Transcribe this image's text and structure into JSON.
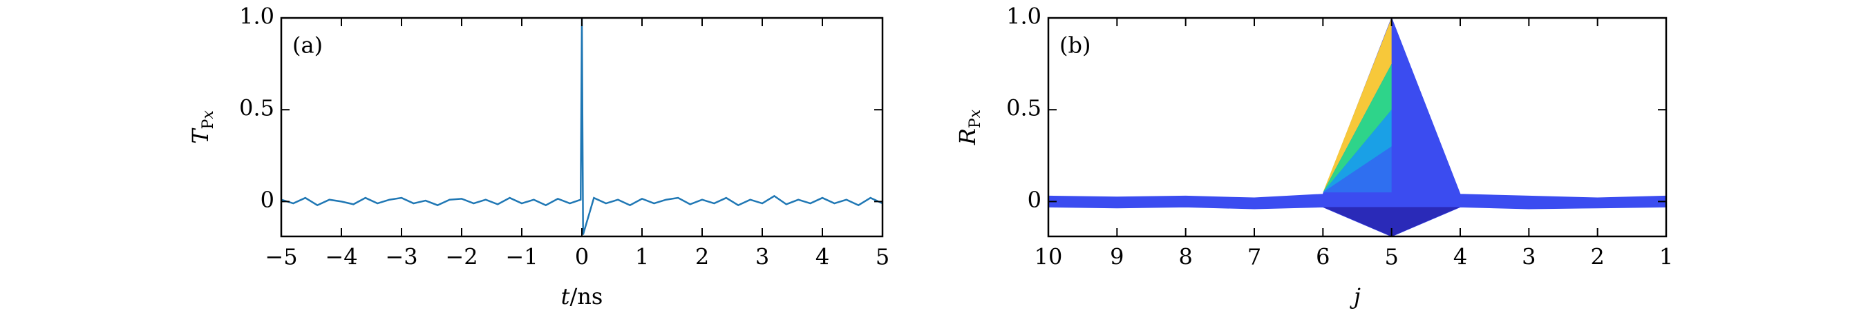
{
  "chart_data": [
    {
      "type": "line",
      "panel_label": "(a)",
      "xlabel": {
        "var": "t",
        "unit": "/ns"
      },
      "ylabel": {
        "main": "T",
        "sub": "P",
        "subsub": "x"
      },
      "x": [
        -5,
        -4.8,
        -4.6,
        -4.4,
        -4.2,
        -4,
        -3.8,
        -3.6,
        -3.4,
        -3.2,
        -3,
        -2.8,
        -2.6,
        -2.4,
        -2.2,
        -2,
        -1.8,
        -1.6,
        -1.4,
        -1.2,
        -1,
        -0.8,
        -0.6,
        -0.4,
        -0.2,
        -0.02,
        0,
        0.02,
        0.2,
        0.4,
        0.6,
        0.8,
        1,
        1.2,
        1.4,
        1.6,
        1.8,
        2,
        2.2,
        2.4,
        2.6,
        2.8,
        3,
        3.2,
        3.4,
        3.6,
        3.8,
        4,
        4.2,
        4.4,
        4.6,
        4.8,
        5
      ],
      "series": [
        {
          "color": "#1f77b4",
          "values": [
            0.01,
            -0.01,
            0.02,
            -0.02,
            0.01,
            0,
            -0.015,
            0.02,
            -0.01,
            0.01,
            0.02,
            -0.01,
            0.005,
            -0.02,
            0.01,
            0.015,
            -0.01,
            0.01,
            -0.015,
            0.02,
            -0.01,
            0.01,
            -0.02,
            0.015,
            -0.01,
            0.01,
            1.0,
            -0.18,
            0.02,
            -0.01,
            0.01,
            -0.02,
            0.015,
            -0.01,
            0.01,
            0.02,
            -0.015,
            0.01,
            -0.01,
            0.02,
            -0.02,
            0.01,
            -0.01,
            0.03,
            -0.015,
            0.01,
            -0.01,
            0.02,
            -0.01,
            0.01,
            -0.02,
            0.02,
            -0.01
          ]
        }
      ],
      "xlim": [
        -5,
        5
      ],
      "ylim": [
        -0.19,
        1.0
      ],
      "xticks": [
        {
          "value": -5,
          "label": "−5"
        },
        {
          "value": -4,
          "label": "−4"
        },
        {
          "value": -3,
          "label": "−3"
        },
        {
          "value": -2,
          "label": "−2"
        },
        {
          "value": -1,
          "label": "−1"
        },
        0,
        1,
        2,
        3,
        4,
        5
      ],
      "yticks": [
        0,
        0.5,
        {
          "value": 1,
          "label": "1.0"
        }
      ]
    },
    {
      "type": "surface",
      "panel_label": "(b)",
      "xlabel": {
        "var": "j",
        "unit": ""
      },
      "ylabel": {
        "main": "R",
        "sub": "P",
        "subsub": "x"
      },
      "x": [
        10,
        9,
        8,
        7,
        6,
        5,
        4,
        3,
        2,
        1
      ],
      "series": [
        {
          "color": "#3b4cf0",
          "values": [
            0.03,
            0.025,
            0.03,
            0.02,
            0.04,
            1.0,
            0.04,
            0.03,
            0.02,
            0.03
          ]
        },
        {
          "color": "#3b4cf0",
          "values": [
            -0.03,
            -0.035,
            -0.03,
            -0.04,
            -0.03,
            -0.19,
            -0.03,
            -0.04,
            -0.035,
            -0.03
          ]
        }
      ],
      "face": {
        "x": [
          6,
          5
        ],
        "apex": 0.05,
        "levels": [
          1.0,
          0.75,
          0.5,
          0.3,
          0.05
        ],
        "colors": [
          "#f7c83a",
          "#2ed48a",
          "#1aa0e6",
          "#2f6ff0"
        ]
      },
      "xlim": [
        10,
        1
      ],
      "ylim": [
        -0.19,
        1.0
      ],
      "xticks": [
        10,
        9,
        8,
        7,
        6,
        5,
        4,
        3,
        2,
        1
      ],
      "yticks": [
        0,
        0.5,
        {
          "value": 1,
          "label": "1.0"
        }
      ]
    }
  ]
}
